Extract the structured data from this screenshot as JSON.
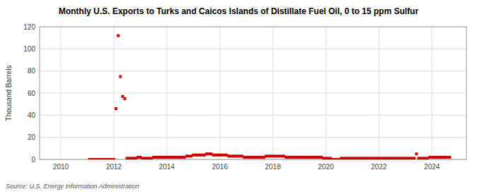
{
  "chart_data": {
    "type": "scatter",
    "title": "Monthly U.S. Exports to Turks and Caicos Islands of Distillate Fuel Oil, 0 to 15 ppm Sulfur",
    "ylabel": "Thousand Barrels",
    "source": "Source: U.S. Energy Information Administration",
    "color": "#cc0000",
    "marker": "square",
    "grid": true,
    "xlim": [
      2009.2,
      2025.3
    ],
    "xticks": [
      2010,
      2012,
      2014,
      2016,
      2018,
      2020,
      2022,
      2024
    ],
    "ylim": [
      0,
      120
    ],
    "yticks": [
      0,
      20,
      40,
      60,
      80,
      100,
      120
    ],
    "x": [
      2011.083,
      2011.167,
      2011.25,
      2011.333,
      2011.417,
      2011.5,
      2011.583,
      2011.667,
      2011.75,
      2011.833,
      2011.917,
      2012.0,
      2012.083,
      2012.167,
      2012.25,
      2012.333,
      2012.417,
      2012.5,
      2012.583,
      2012.667,
      2012.75,
      2012.833,
      2012.917,
      2013.0,
      2013.083,
      2013.167,
      2013.25,
      2013.333,
      2013.417,
      2013.5,
      2013.583,
      2013.667,
      2013.75,
      2013.833,
      2013.917,
      2014.0,
      2014.083,
      2014.167,
      2014.25,
      2014.333,
      2014.417,
      2014.5,
      2014.583,
      2014.667,
      2014.75,
      2014.833,
      2014.917,
      2015.0,
      2015.083,
      2015.167,
      2015.25,
      2015.333,
      2015.417,
      2015.5,
      2015.583,
      2015.667,
      2015.75,
      2015.833,
      2015.917,
      2016.0,
      2016.083,
      2016.167,
      2016.25,
      2016.333,
      2016.417,
      2016.5,
      2016.583,
      2016.667,
      2016.75,
      2016.833,
      2016.917,
      2017.0,
      2017.083,
      2017.167,
      2017.25,
      2017.333,
      2017.417,
      2017.5,
      2017.583,
      2017.667,
      2017.75,
      2017.833,
      2017.917,
      2018.0,
      2018.083,
      2018.167,
      2018.25,
      2018.333,
      2018.417,
      2018.5,
      2018.583,
      2018.667,
      2018.75,
      2018.833,
      2018.917,
      2019.0,
      2019.083,
      2019.167,
      2019.25,
      2019.333,
      2019.417,
      2019.5,
      2019.583,
      2019.667,
      2019.75,
      2019.833,
      2019.917,
      2020.0,
      2020.083,
      2020.167,
      2020.25,
      2020.333,
      2020.417,
      2020.5,
      2020.583,
      2020.667,
      2020.75,
      2020.833,
      2020.917,
      2021.0,
      2021.083,
      2021.167,
      2021.25,
      2021.333,
      2021.417,
      2021.5,
      2021.583,
      2021.667,
      2021.75,
      2021.833,
      2021.917,
      2022.0,
      2022.083,
      2022.167,
      2022.25,
      2022.333,
      2022.417,
      2022.5,
      2022.583,
      2022.667,
      2022.75,
      2022.833,
      2022.917,
      2023.0,
      2023.083,
      2023.167,
      2023.25,
      2023.333,
      2023.417,
      2023.5,
      2023.583,
      2023.667,
      2023.75,
      2023.833,
      2023.917,
      2024.0,
      2024.083,
      2024.167,
      2024.25,
      2024.333,
      2024.417,
      2024.5,
      2024.583,
      2024.667
    ],
    "values": [
      0,
      0,
      0,
      0,
      0,
      0,
      0,
      0,
      0,
      0,
      0,
      0,
      46,
      112,
      75,
      57,
      55,
      1,
      1,
      1,
      1,
      1,
      2,
      2,
      1,
      1,
      1,
      1,
      1,
      2,
      2,
      2,
      2,
      2,
      2,
      2,
      2,
      2,
      2,
      2,
      2,
      2,
      2,
      2,
      3,
      3,
      3,
      4,
      4,
      4,
      4,
      4,
      4,
      5,
      5,
      5,
      4,
      4,
      4,
      4,
      4,
      4,
      4,
      3,
      3,
      3,
      3,
      3,
      3,
      3,
      2,
      2,
      2,
      2,
      2,
      2,
      2,
      2,
      2,
      2,
      3,
      3,
      3,
      3,
      3,
      3,
      3,
      3,
      3,
      2,
      2,
      2,
      2,
      2,
      2,
      2,
      2,
      2,
      2,
      2,
      2,
      2,
      2,
      2,
      2,
      2,
      1,
      1,
      1,
      1,
      0,
      0,
      0,
      0,
      1,
      1,
      1,
      1,
      1,
      1,
      1,
      1,
      1,
      1,
      1,
      1,
      1,
      1,
      1,
      1,
      1,
      1,
      1,
      1,
      1,
      1,
      1,
      1,
      1,
      1,
      1,
      1,
      1,
      1,
      1,
      1,
      1,
      1,
      5,
      1,
      1,
      1,
      1,
      1,
      2,
      2,
      2,
      2,
      2,
      2,
      2,
      2,
      2,
      2
    ]
  }
}
